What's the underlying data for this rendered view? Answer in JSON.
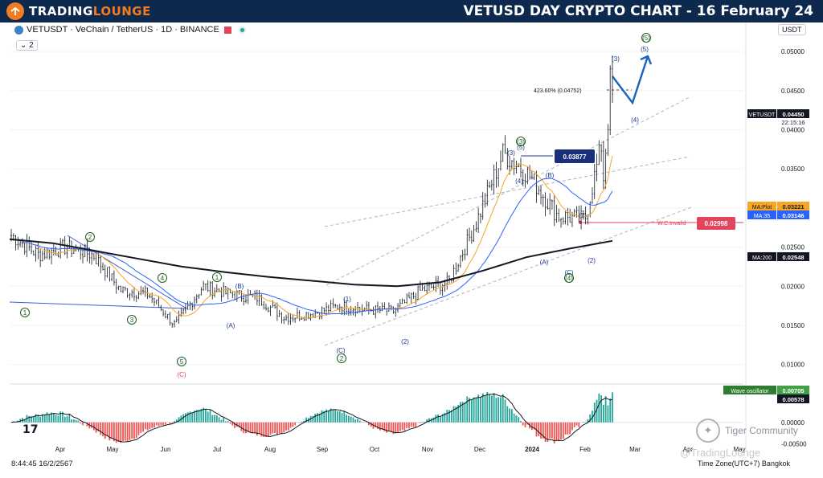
{
  "header": {
    "brand_trading": "TRADING",
    "brand_lounge": "LOUNGE",
    "title": "VETUSD DAY CRYPTO CHART - 16 February 24"
  },
  "legend": {
    "symbol": "VETUSDT · VeChain / TetherUS · 1D · BINANCE",
    "indicator_count": "2",
    "currency_button": "USDT"
  },
  "footer": {
    "datetime": "8:44:45 16/2/2567",
    "timezone": "Time Zone(UTC+7) Bangkok",
    "watermark1": "Tiger Community",
    "watermark2": "@TradingLounge"
  },
  "colors": {
    "up": "#26a69a",
    "down": "#ef5350",
    "candle": "#131722",
    "ma_plot": "#f5a623",
    "ma35": "#2962ff",
    "ma200": "#131722",
    "wave_blue": "#1e3a8a",
    "wave_green": "#1b5e20",
    "channel": "#b2b5be",
    "invalid": "#e2445c"
  },
  "chart_data": [
    {
      "type": "candlestick",
      "title": "VETUSDT · VeChain / TetherUS · 1D · BINANCE",
      "x_tick_labels": [
        "Apr",
        "May",
        "Jun",
        "Jul",
        "Aug",
        "Sep",
        "Oct",
        "Nov",
        "Dec",
        "2024",
        "Feb",
        "Mar",
        "Apr",
        "May"
      ],
      "y_tick_labels": [
        "0.05000",
        "0.04500",
        "0.04000",
        "0.03500",
        "0.03000",
        "0.02500",
        "0.02000",
        "0.01500",
        "0.01000"
      ],
      "ylim": [
        0.0075,
        0.0535
      ],
      "series": [
        {
          "name": "VETUSDT",
          "last": "0.04450",
          "countdown": "22:15:16"
        },
        {
          "name": "MA:Plot",
          "last": "0.03221"
        },
        {
          "name": "MA:35",
          "last": "0.03146"
        },
        {
          "name": "MA:200",
          "last": "0.02548"
        }
      ],
      "points": [
        {
          "month": "Mar",
          "close": 0.0265
        },
        {
          "month": "Apr",
          "close": 0.024
        },
        {
          "month": "Apr",
          "close": 0.025
        },
        {
          "month": "May",
          "close": 0.024
        },
        {
          "month": "May",
          "close": 0.0195
        },
        {
          "month": "Jun",
          "close": 0.019
        },
        {
          "month": "Jun",
          "close": 0.015
        },
        {
          "month": "Jul",
          "close": 0.02
        },
        {
          "month": "Jul",
          "close": 0.019
        },
        {
          "month": "Aug",
          "close": 0.0185
        },
        {
          "month": "Aug",
          "close": 0.016
        },
        {
          "month": "Sep",
          "close": 0.0165
        },
        {
          "month": "Sep",
          "close": 0.0175
        },
        {
          "month": "Oct",
          "close": 0.017
        },
        {
          "month": "Oct",
          "close": 0.0168
        },
        {
          "month": "Nov",
          "close": 0.0195
        },
        {
          "month": "Nov",
          "close": 0.0205
        },
        {
          "month": "Dec",
          "close": 0.028
        },
        {
          "month": "Dec",
          "close": 0.037
        },
        {
          "month": "2024",
          "close": 0.034
        },
        {
          "month": "2024",
          "close": 0.029
        },
        {
          "month": "Feb",
          "close": 0.0285
        },
        {
          "month": "Feb",
          "close": 0.0445
        }
      ],
      "annotations": {
        "fib": "423.60% (0.04752)",
        "fib_value": 0.04752,
        "level_box": "0.03877",
        "level_box_value": 0.03877,
        "invalid_label": "W.C.Invalid",
        "invalid_value": "0.02998",
        "wave_labels": [
          "1",
          "2",
          "3",
          "4",
          "5",
          "(A)",
          "(B)",
          "(C)",
          "1",
          "2",
          "(1)",
          "(2)",
          "(3)",
          "(4)",
          "(5)",
          "(A)",
          "(B)",
          "(C)",
          "(3)",
          "(4)",
          "(5)",
          "(1)",
          "(2)",
          "(3)",
          "(4)",
          "(5)",
          "(C)"
        ]
      }
    },
    {
      "type": "bar",
      "title": "Wave oscillator",
      "y_tick_labels": [
        "0.00000",
        "-0.00500"
      ],
      "ylim": [
        -0.0055,
        0.009
      ],
      "series": [
        {
          "name": "Wave oscillator",
          "last": "0.00705"
        },
        {
          "name": "signal",
          "last": "0.00578"
        }
      ]
    }
  ]
}
